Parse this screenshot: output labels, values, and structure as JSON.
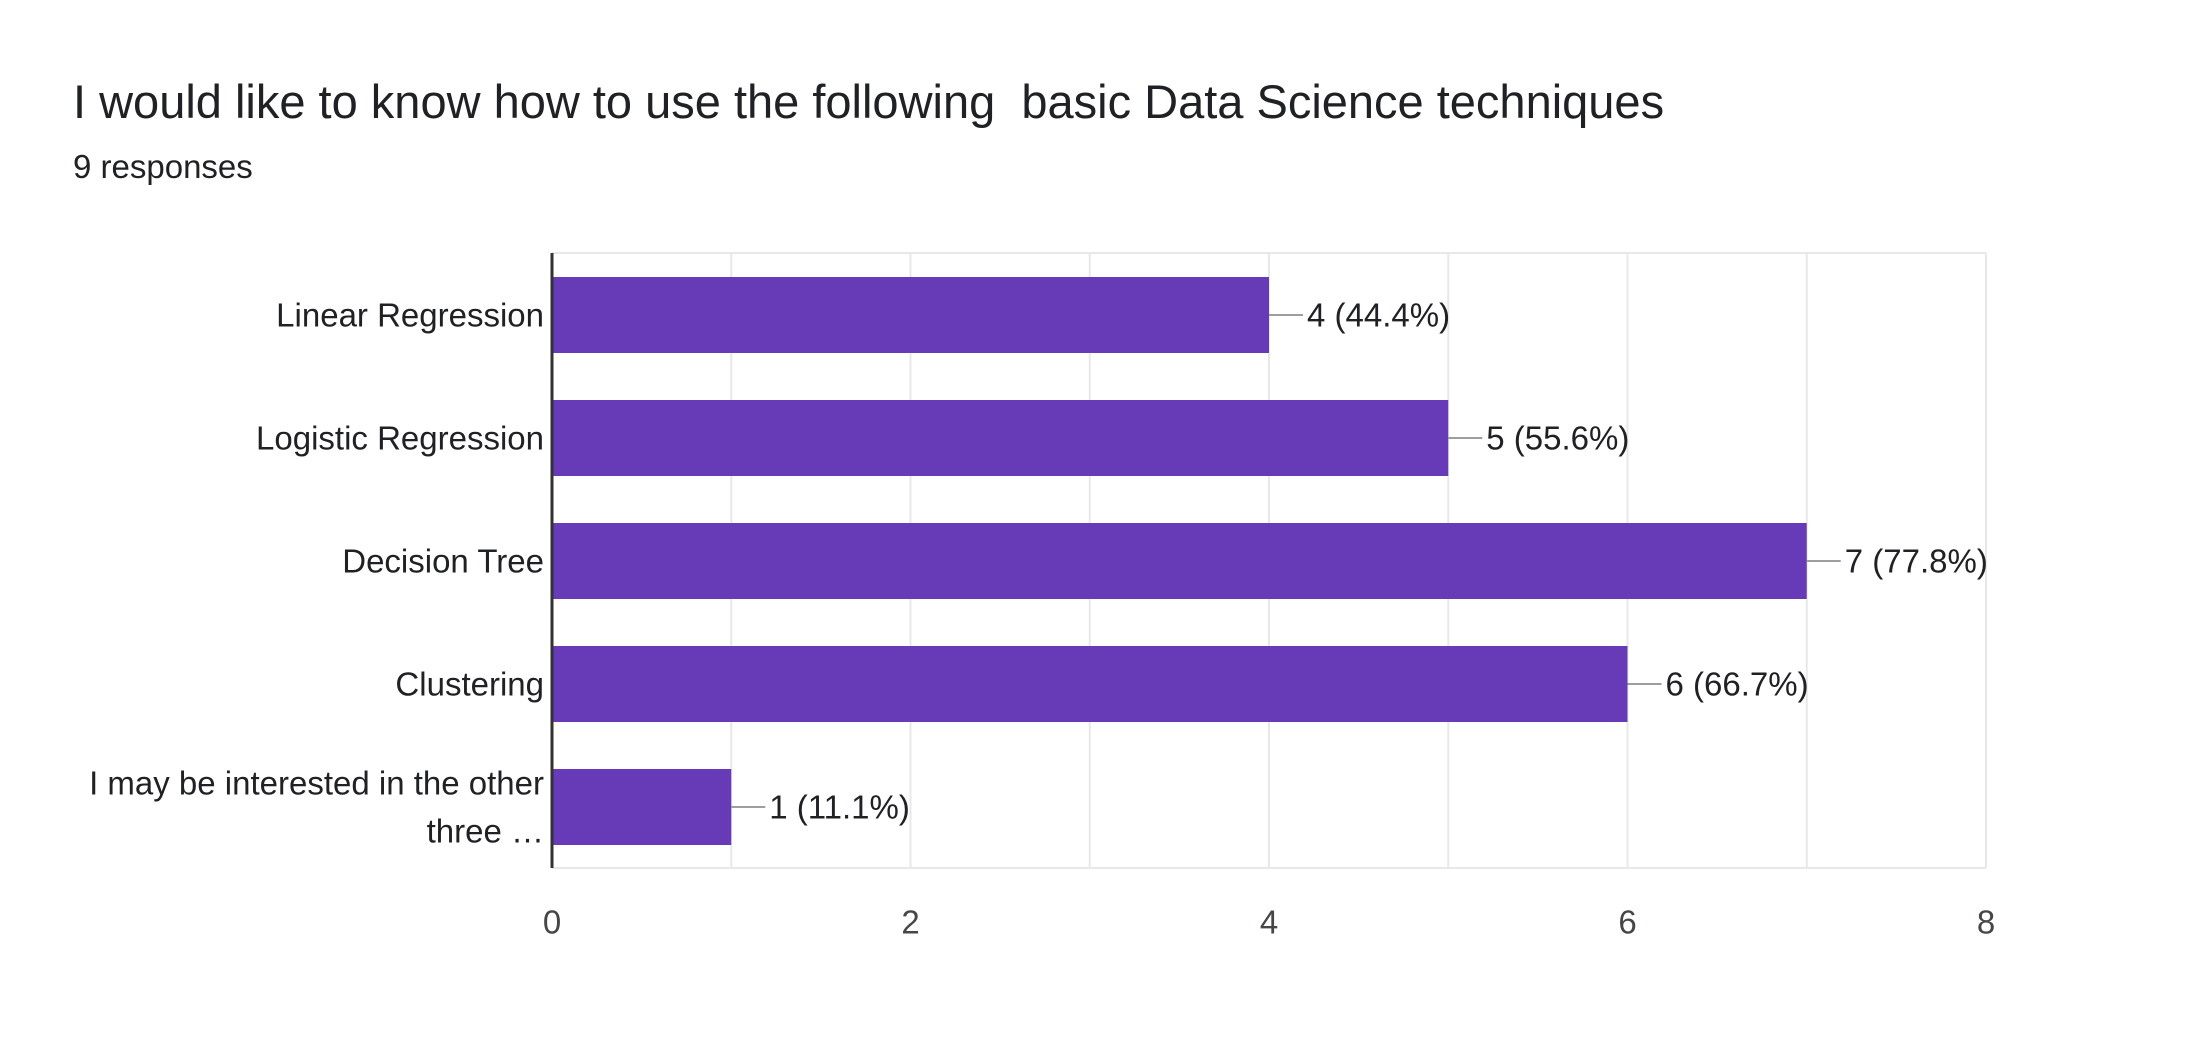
{
  "header": {
    "title": "I would like to know how to use the following  basic Data Science techniques",
    "subtitle": "9 responses"
  },
  "chart_data": {
    "type": "bar",
    "orientation": "horizontal",
    "categories": [
      [
        "Linear Regression"
      ],
      [
        "Logistic Regression"
      ],
      [
        "Decision Tree"
      ],
      [
        "Clustering"
      ],
      [
        "I may be interested in the other",
        "three …"
      ]
    ],
    "values": [
      4,
      5,
      7,
      6,
      1
    ],
    "data_labels": [
      "4 (44.4%)",
      "5 (55.6%)",
      "7 (77.8%)",
      "6 (66.7%)",
      "1 (11.1%)"
    ],
    "xlim": [
      0,
      8
    ],
    "x_ticks": [
      0,
      2,
      4,
      6,
      8
    ],
    "grid": true,
    "colors": {
      "bar": "#673ab7",
      "grid": "#e8e8e8",
      "axis": "#333333",
      "leader": "#9e9e9e"
    }
  }
}
